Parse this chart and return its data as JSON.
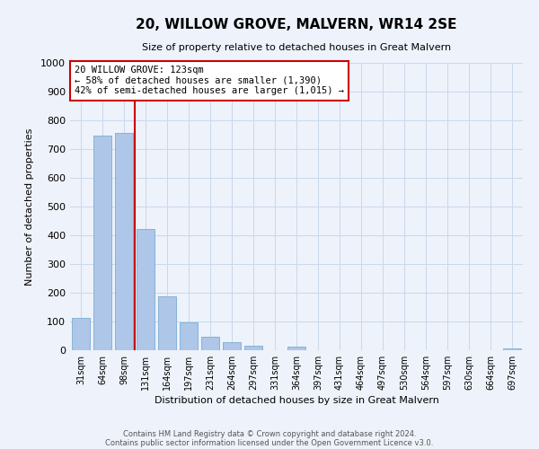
{
  "title": "20, WILLOW GROVE, MALVERN, WR14 2SE",
  "subtitle": "Size of property relative to detached houses in Great Malvern",
  "bar_labels": [
    "31sqm",
    "64sqm",
    "98sqm",
    "131sqm",
    "164sqm",
    "197sqm",
    "231sqm",
    "264sqm",
    "297sqm",
    "331sqm",
    "364sqm",
    "397sqm",
    "431sqm",
    "464sqm",
    "497sqm",
    "530sqm",
    "564sqm",
    "597sqm",
    "630sqm",
    "664sqm",
    "697sqm"
  ],
  "bar_values": [
    113,
    748,
    755,
    422,
    188,
    97,
    47,
    27,
    17,
    0,
    14,
    0,
    0,
    0,
    0,
    0,
    0,
    0,
    0,
    0,
    7
  ],
  "bar_color": "#aec6e8",
  "bar_edge_color": "#7aadd4",
  "grid_color": "#c8d8ec",
  "background_color": "#eef2fa",
  "vline_color": "#cc0000",
  "vline_x_index": 2.5,
  "xlabel": "Distribution of detached houses by size in Great Malvern",
  "ylabel": "Number of detached properties",
  "ylim": [
    0,
    1000
  ],
  "yticks": [
    0,
    100,
    200,
    300,
    400,
    500,
    600,
    700,
    800,
    900,
    1000
  ],
  "annotation_title": "20 WILLOW GROVE: 123sqm",
  "annotation_line1": "← 58% of detached houses are smaller (1,390)",
  "annotation_line2": "42% of semi-detached houses are larger (1,015) →",
  "annotation_box_color": "#ffffff",
  "annotation_box_edge": "#cc0000",
  "footer_line1": "Contains HM Land Registry data © Crown copyright and database right 2024.",
  "footer_line2": "Contains public sector information licensed under the Open Government Licence v3.0."
}
